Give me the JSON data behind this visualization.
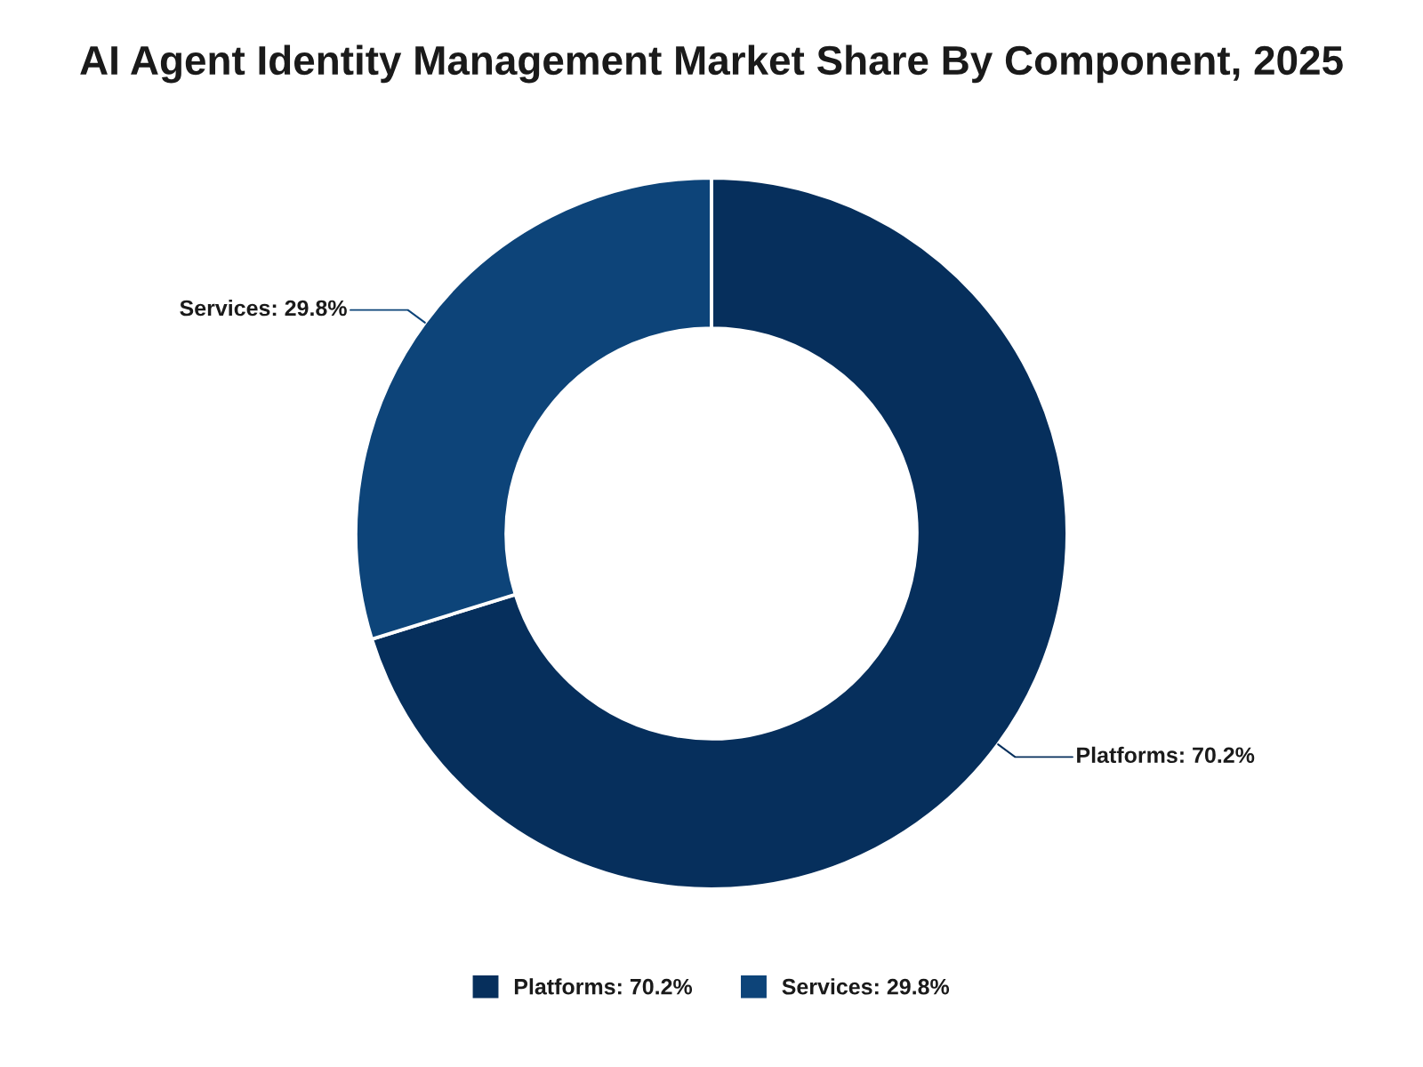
{
  "chart_data": {
    "type": "donut",
    "title": "AI Agent Identity Management Market Share By Component, 2025",
    "categories": [
      "Platforms: 70.2%",
      "Services: 29.8%"
    ],
    "values": [
      70.2,
      29.8
    ],
    "colors": [
      "#062f5c",
      "#0d4479"
    ],
    "legend": "bottom"
  }
}
